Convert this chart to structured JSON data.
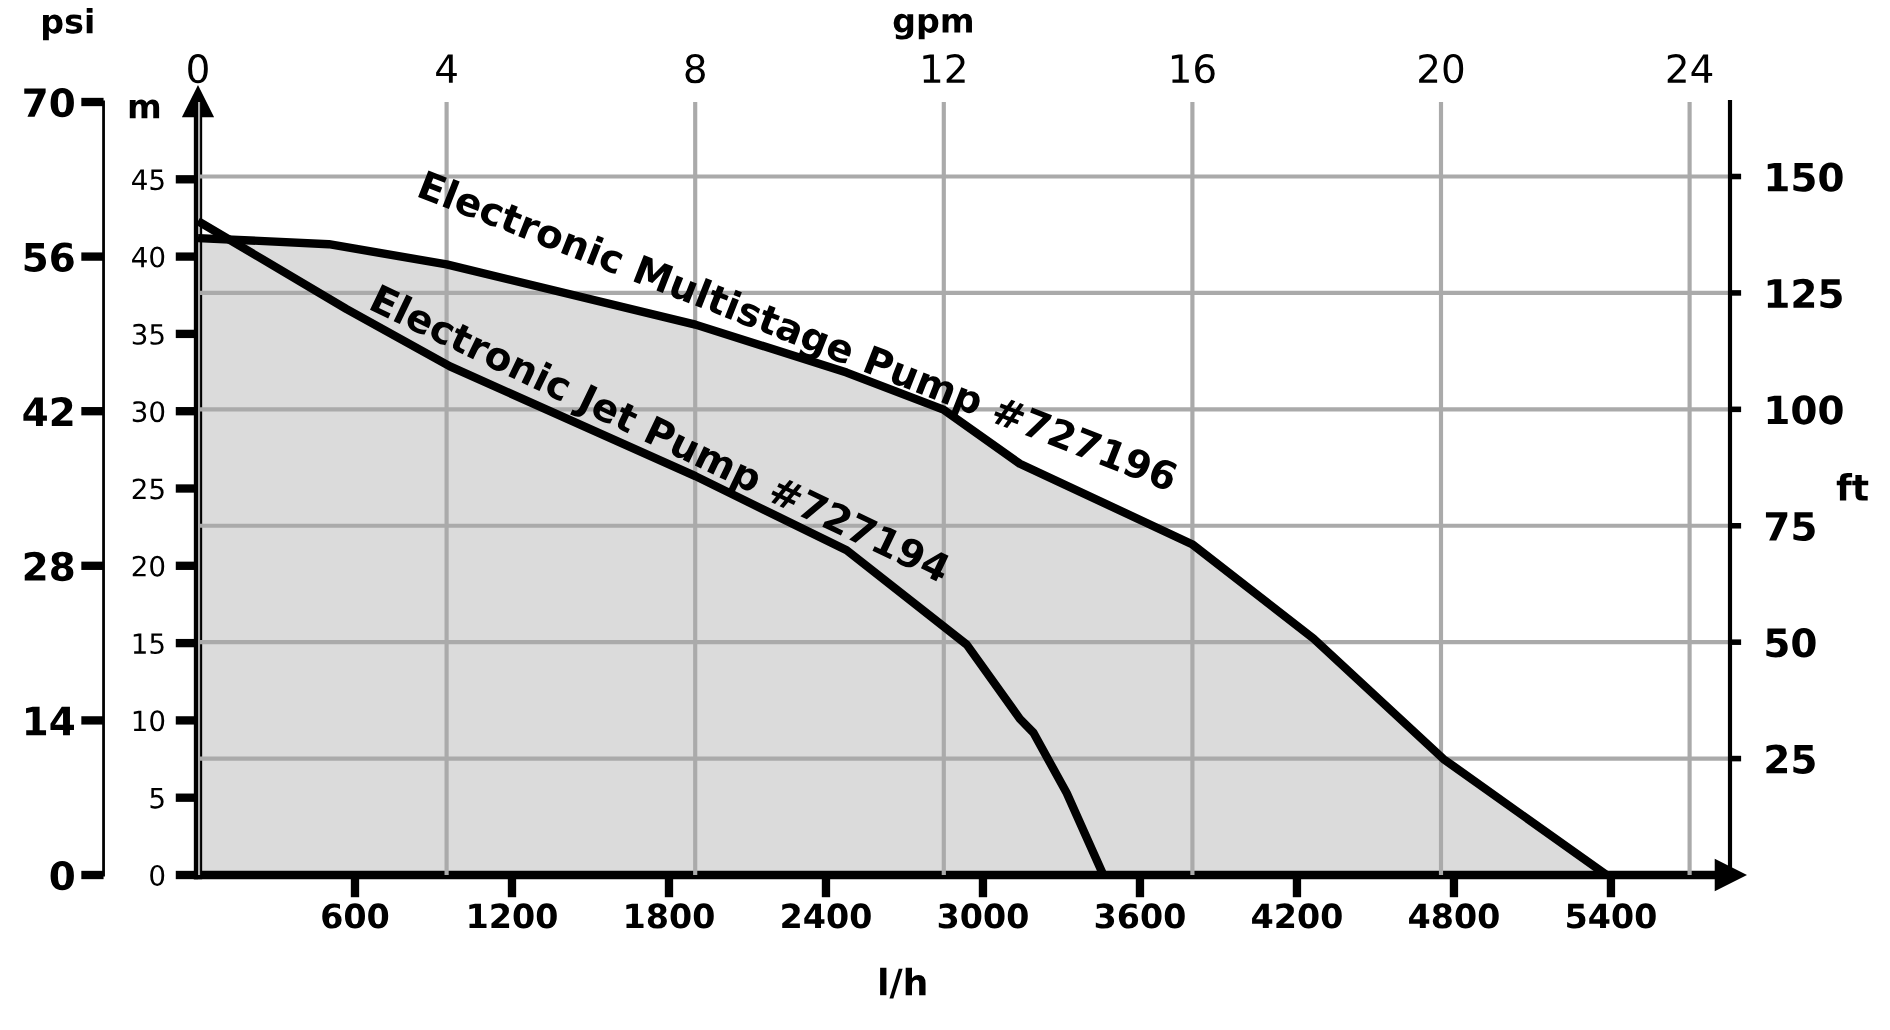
{
  "chart_data": {
    "type": "area",
    "xlabel": "l/h",
    "ylabel": "m",
    "y2label": "ft",
    "y3label": "psi",
    "x2label": "gpm",
    "xlim": [
      0,
      5855
    ],
    "xticks": [
      600,
      1200,
      1800,
      2400,
      3000,
      3600,
      4200,
      4800,
      5400
    ],
    "ylim": [
      0,
      50
    ],
    "yticks": [
      0,
      5,
      10,
      15,
      20,
      25,
      30,
      35,
      40,
      45
    ],
    "y2lim": [
      0,
      166
    ],
    "y2ticks": [
      25,
      50,
      75,
      100,
      125,
      150
    ],
    "y3lim": [
      0,
      70
    ],
    "y3ticks": [
      0,
      14,
      28,
      42,
      56,
      70
    ],
    "x2lim": [
      0,
      24.65
    ],
    "x2ticks": [
      0,
      4,
      8,
      12,
      16,
      20,
      24
    ],
    "grid": true,
    "legend": false,
    "series": [
      {
        "name": "Electronic Multistage Pump #727196",
        "color": "#000000",
        "x": [
          0,
          500,
          950,
          1901,
          2479,
          2849,
          3141,
          3799,
          4263,
          4760,
          5383
        ],
        "values": [
          41.2,
          40.8,
          39.5,
          35.6,
          32.5,
          30.1,
          26.6,
          21.4,
          15.3,
          7.5,
          0
        ]
      },
      {
        "name": "Electronic Jet Pump #727194",
        "type": "line",
        "color": "#000000",
        "x": [
          0,
          568,
          963,
          1901,
          2479,
          2938,
          3141,
          3193,
          3320,
          3460
        ],
        "values": [
          42.3,
          36.6,
          32.9,
          25.8,
          21.0,
          14.9,
          10.1,
          9.2,
          5.3,
          0
        ]
      }
    ]
  }
}
